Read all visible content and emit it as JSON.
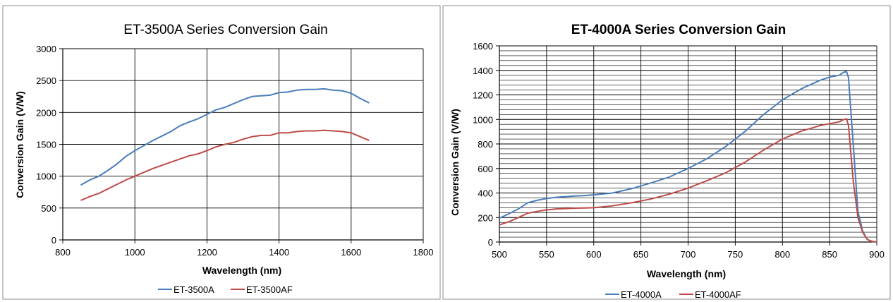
{
  "colors": {
    "series_a": "#4a7ebb",
    "series_af": "#be4b48",
    "grid": "#000000",
    "frame": "#8c8c8c"
  },
  "chart_data": [
    {
      "type": "line",
      "title": "ET-3500A Series Conversion Gain",
      "xlabel": "Wavelength (nm)",
      "ylabel": "Conversion Gain (V/W)",
      "xlim": [
        800,
        1800
      ],
      "ylim": [
        0,
        3000
      ],
      "xticks": [
        800,
        1000,
        1200,
        1400,
        1600,
        1800
      ],
      "yticks": [
        0,
        500,
        1000,
        1500,
        2000,
        2500,
        3000
      ],
      "xtick_labels": [
        "800",
        "1000",
        "1200",
        "1400",
        "1600",
        "1800"
      ],
      "ytick_labels": [
        "0",
        "500",
        "1000",
        "1500",
        "2000",
        "2500",
        "3000"
      ],
      "grid": "major",
      "legend": "bottom",
      "series": [
        {
          "name": "ET-3500A",
          "x": [
            850,
            875,
            900,
            925,
            950,
            975,
            1000,
            1025,
            1050,
            1075,
            1100,
            1125,
            1150,
            1175,
            1200,
            1225,
            1250,
            1275,
            1300,
            1325,
            1350,
            1375,
            1400,
            1425,
            1450,
            1475,
            1500,
            1525,
            1550,
            1575,
            1600,
            1625,
            1650
          ],
          "y": [
            860,
            940,
            1000,
            1090,
            1190,
            1310,
            1400,
            1480,
            1560,
            1630,
            1700,
            1790,
            1850,
            1900,
            1970,
            2040,
            2080,
            2140,
            2200,
            2250,
            2260,
            2270,
            2310,
            2320,
            2350,
            2360,
            2360,
            2370,
            2350,
            2340,
            2300,
            2220,
            2150
          ]
        },
        {
          "name": "ET-3500AF",
          "x": [
            850,
            875,
            900,
            925,
            950,
            975,
            1000,
            1025,
            1050,
            1075,
            1100,
            1125,
            1150,
            1175,
            1200,
            1225,
            1250,
            1275,
            1300,
            1325,
            1350,
            1375,
            1400,
            1425,
            1450,
            1475,
            1500,
            1525,
            1550,
            1575,
            1600,
            1625,
            1650
          ],
          "y": [
            620,
            680,
            730,
            800,
            870,
            940,
            1000,
            1060,
            1120,
            1170,
            1220,
            1270,
            1320,
            1350,
            1400,
            1460,
            1500,
            1530,
            1580,
            1620,
            1640,
            1640,
            1680,
            1680,
            1700,
            1710,
            1710,
            1720,
            1710,
            1700,
            1680,
            1620,
            1560
          ]
        }
      ]
    },
    {
      "type": "line",
      "title": "ET-4000A Series Conversion Gain",
      "xlabel": "Wavelength (nm)",
      "ylabel": "Conversion Gain (V/W)",
      "xlim": [
        500,
        900
      ],
      "ylim": [
        0,
        1600
      ],
      "xticks": [
        500,
        550,
        600,
        650,
        700,
        750,
        800,
        850,
        900
      ],
      "yticks": [
        0,
        200,
        400,
        600,
        800,
        1000,
        1200,
        1400,
        1600
      ],
      "xtick_labels": [
        "500",
        "550",
        "600",
        "650",
        "700",
        "750",
        "800",
        "850",
        "900"
      ],
      "ytick_labels": [
        "0",
        "200",
        "400",
        "600",
        "800",
        "1000",
        "1200",
        "1400",
        "1600"
      ],
      "grid": "major+minor",
      "legend": "bottom",
      "series": [
        {
          "name": "ET-4000A",
          "x": [
            500,
            510,
            520,
            530,
            540,
            550,
            560,
            570,
            580,
            590,
            600,
            620,
            640,
            660,
            680,
            700,
            720,
            740,
            760,
            780,
            800,
            820,
            840,
            850,
            860,
            865,
            868,
            870,
            875,
            880,
            885,
            890,
            895,
            900
          ],
          "y": [
            195,
            230,
            270,
            320,
            340,
            355,
            365,
            370,
            375,
            378,
            385,
            400,
            435,
            480,
            530,
            600,
            680,
            780,
            900,
            1040,
            1160,
            1250,
            1320,
            1345,
            1360,
            1385,
            1390,
            1340,
            800,
            250,
            90,
            20,
            5,
            0
          ]
        },
        {
          "name": "ET-4000AF",
          "x": [
            500,
            510,
            520,
            530,
            540,
            550,
            560,
            570,
            580,
            590,
            600,
            620,
            640,
            660,
            680,
            700,
            720,
            740,
            760,
            780,
            800,
            820,
            840,
            850,
            860,
            865,
            868,
            870,
            875,
            880,
            885,
            890,
            895,
            900
          ],
          "y": [
            140,
            165,
            200,
            235,
            250,
            262,
            270,
            273,
            276,
            278,
            280,
            295,
            320,
            350,
            390,
            440,
            500,
            565,
            650,
            750,
            840,
            905,
            950,
            965,
            980,
            1000,
            1005,
            950,
            500,
            200,
            80,
            20,
            5,
            0
          ]
        }
      ]
    }
  ]
}
